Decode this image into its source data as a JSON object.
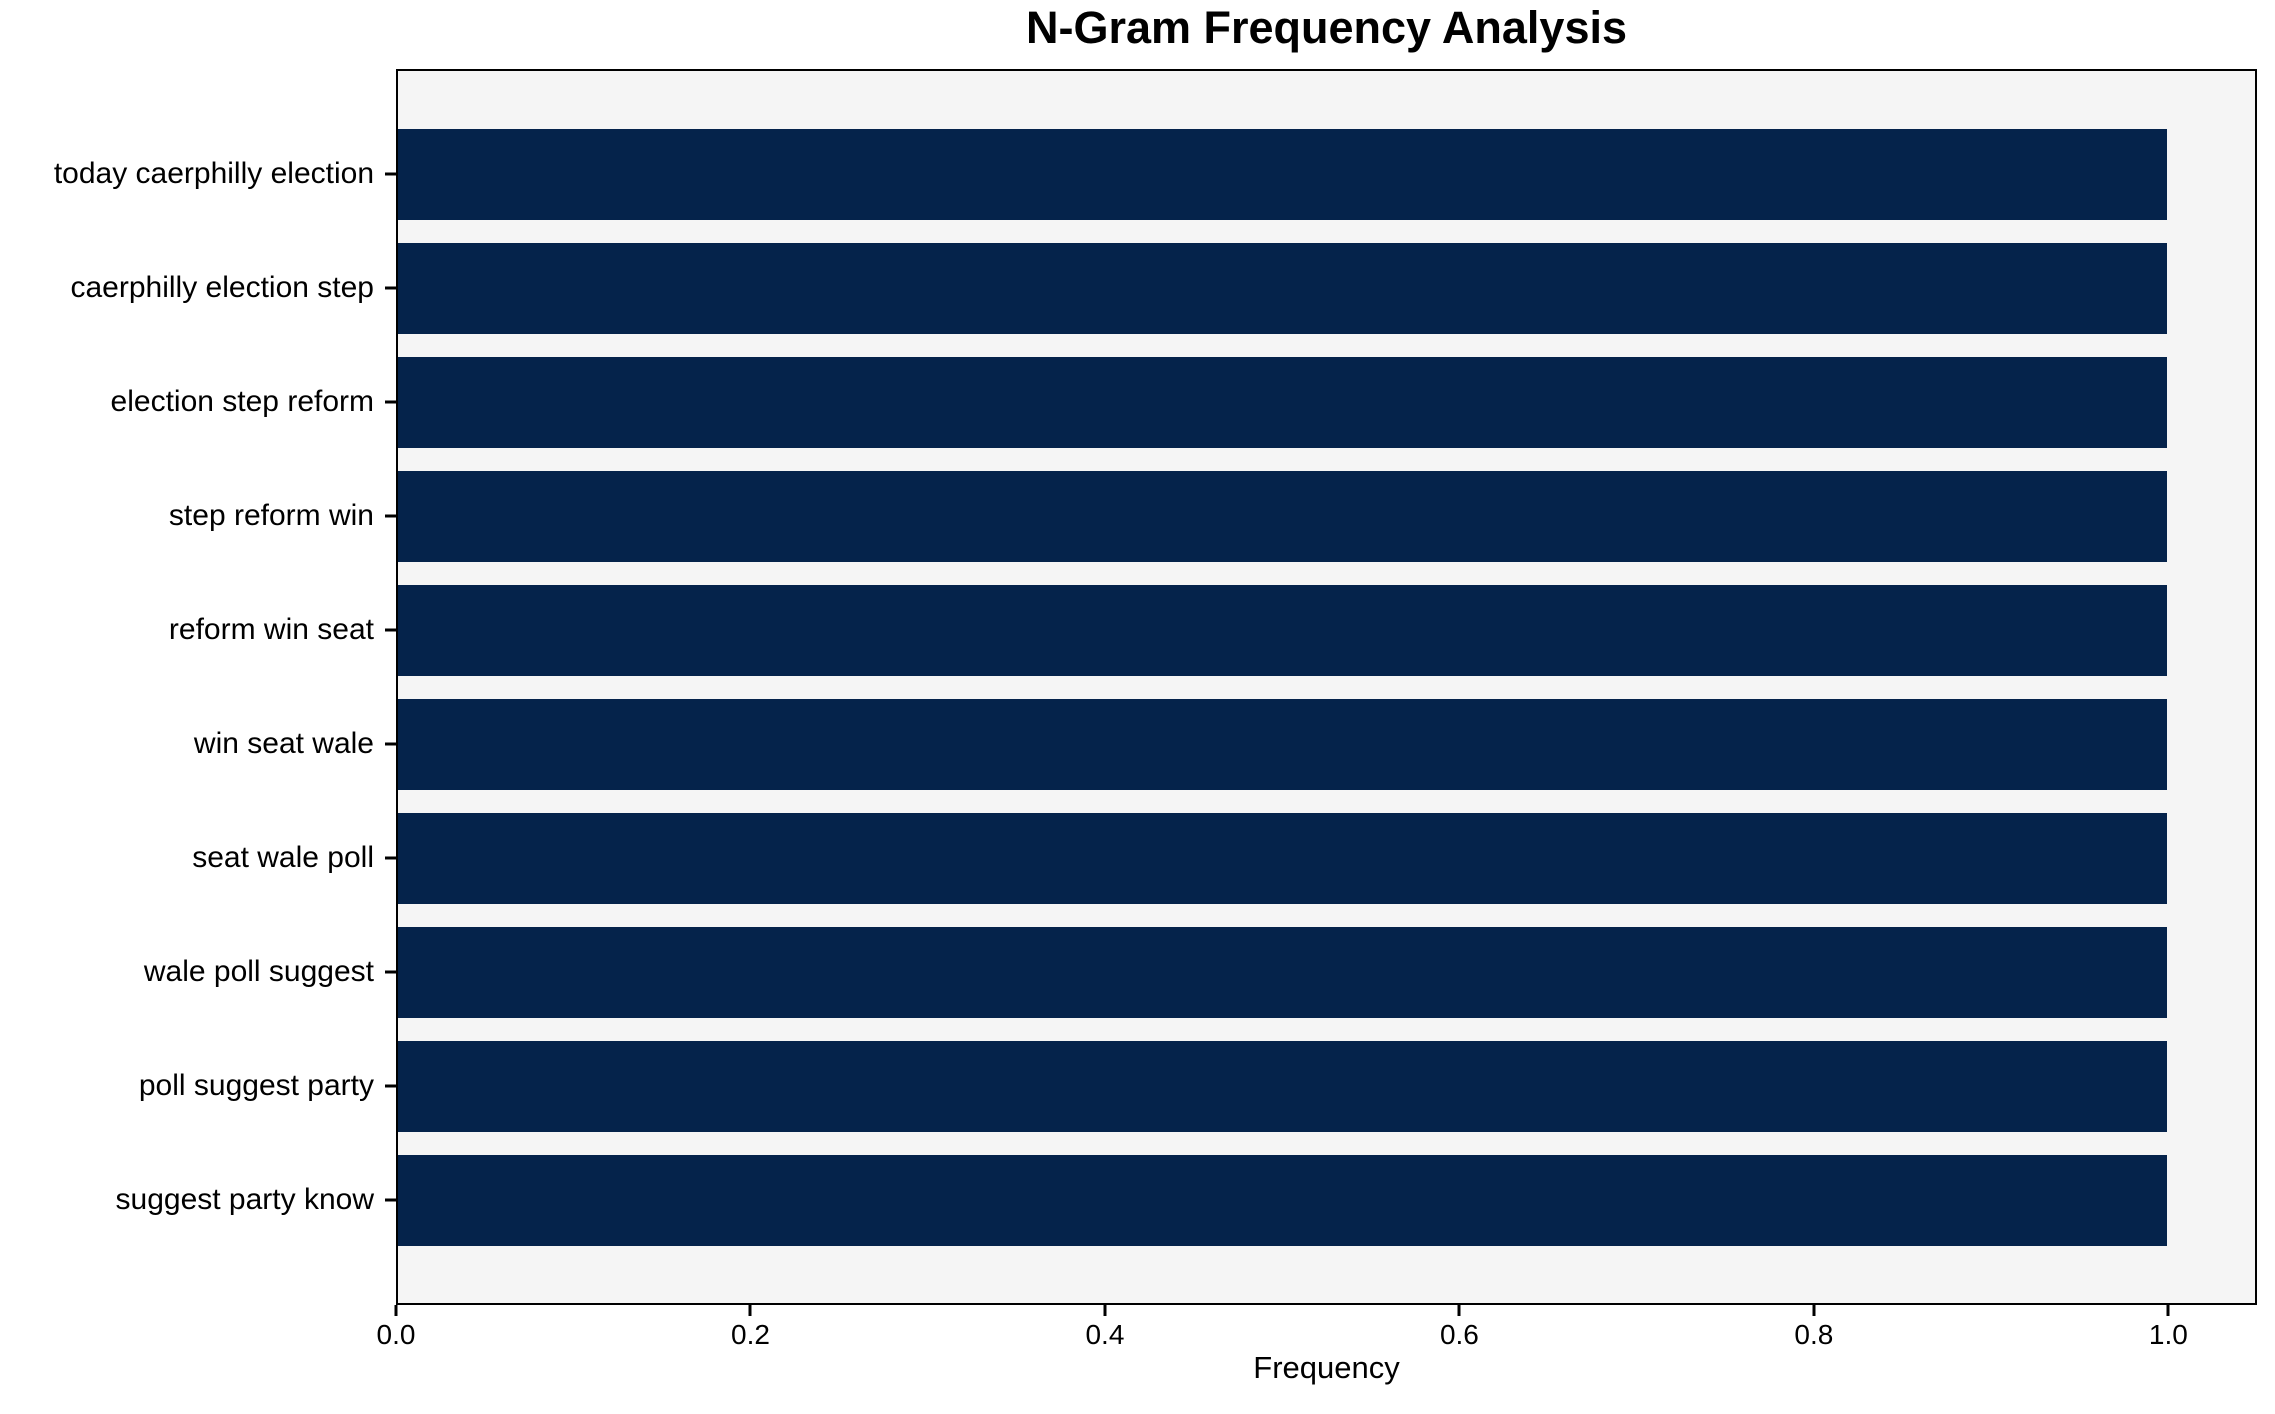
{
  "chart_data": {
    "type": "bar",
    "orientation": "horizontal",
    "title": "N-Gram Frequency Analysis",
    "xlabel": "Frequency",
    "ylabel": "",
    "categories": [
      "today caerphilly election",
      "caerphilly election step",
      "election step reform",
      "step reform win",
      "reform win seat",
      "win seat wale",
      "seat wale poll",
      "wale poll suggest",
      "poll suggest party",
      "suggest party know"
    ],
    "values": [
      1.0,
      1.0,
      1.0,
      1.0,
      1.0,
      1.0,
      1.0,
      1.0,
      1.0,
      1.0
    ],
    "x_tick_values": [
      0.0,
      0.2,
      0.4,
      0.6,
      0.8,
      1.0
    ],
    "x_tick_labels": [
      "0.0",
      "0.2",
      "0.4",
      "0.6",
      "0.8",
      "1.0"
    ],
    "xlim": [
      0,
      1.05
    ],
    "grid": false,
    "legend": false,
    "colors": {
      "bar": "#05234b",
      "plot_background": "#f5f5f5",
      "figure_background": "#ffffff",
      "axis": "#000000",
      "text": "#000000"
    }
  }
}
